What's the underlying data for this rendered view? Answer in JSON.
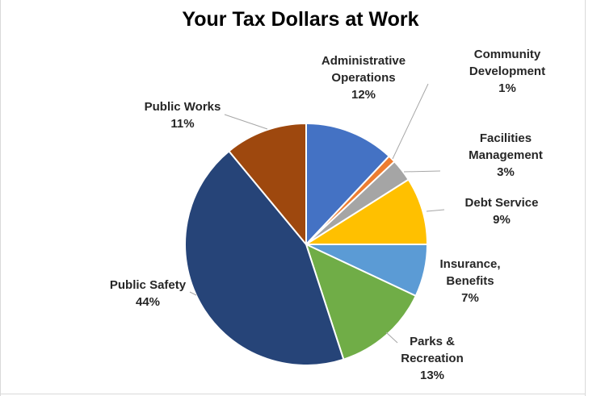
{
  "chart_data": {
    "type": "pie",
    "title": "Your Tax Dollars at Work",
    "start_angle_deg": 0,
    "direction": "clockwise",
    "slices": [
      {
        "label": [
          "Administrative",
          "Operations"
        ],
        "value": 12,
        "value_label": "12%",
        "color": "#4472c4"
      },
      {
        "label": [
          "Community",
          "Development"
        ],
        "value": 1,
        "value_label": "1%",
        "color": "#ed7d31"
      },
      {
        "label": [
          "Facilities",
          "Management"
        ],
        "value": 3,
        "value_label": "3%",
        "color": "#a5a5a5"
      },
      {
        "label": [
          "Debt Service"
        ],
        "value": 9,
        "value_label": "9%",
        "color": "#ffc000"
      },
      {
        "label": [
          "Insurance,",
          "Benefits"
        ],
        "value": 7,
        "value_label": "7%",
        "color": "#5b9bd5"
      },
      {
        "label": [
          "Parks &",
          "Recreation"
        ],
        "value": 13,
        "value_label": "13%",
        "color": "#70ad47"
      },
      {
        "label": [
          "Public Safety"
        ],
        "value": 44,
        "value_label": "44%",
        "color": "#264478"
      },
      {
        "label": [
          "Public Works"
        ],
        "value": 11,
        "value_label": "11%",
        "color": "#9e480e"
      }
    ],
    "legend": "none",
    "leader_lines": true,
    "border_color": "#ffffff"
  }
}
